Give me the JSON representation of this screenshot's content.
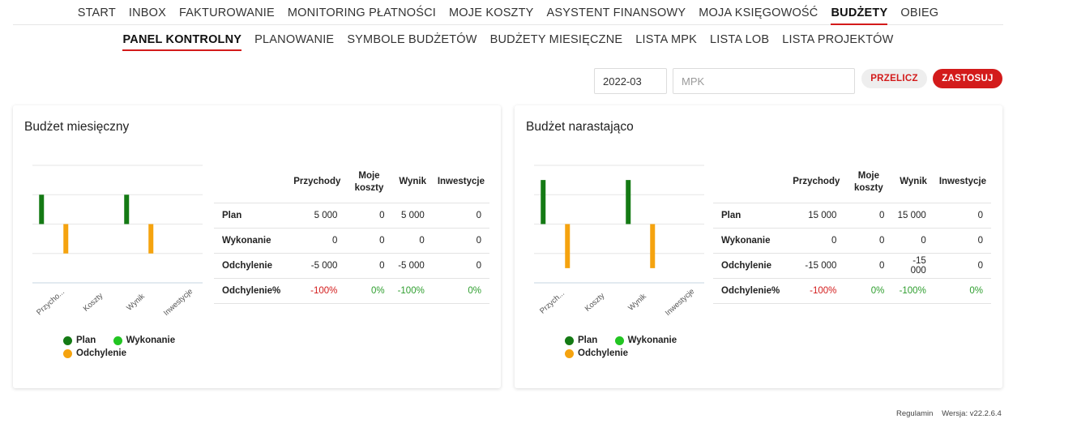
{
  "nav": {
    "items": [
      "START",
      "INBOX",
      "FAKTUROWANIE",
      "MONITORING PŁATNOŚCI",
      "MOJE KOSZTY",
      "ASYSTENT FINANSOWY",
      "MOJA KSIĘGOWOŚĆ",
      "BUDŻETY",
      "OBIEG"
    ],
    "active": "BUDŻETY"
  },
  "subnav": {
    "items": [
      "PANEL KONTROLNY",
      "PLANOWANIE",
      "SYMBOLE BUDŻETÓW",
      "BUDŻETY MIESIĘCZNE",
      "LISTA MPK",
      "LISTA LOB",
      "LISTA PROJEKTÓW"
    ],
    "active": "PANEL KONTROLNY"
  },
  "filters": {
    "month_value": "2022-03",
    "mpk_placeholder": "MPK",
    "recalc_label": "PRZELICZ",
    "apply_label": "ZASTOSUJ"
  },
  "colors": {
    "accent": "#d31b1b",
    "plan": "#147a14",
    "wykonanie": "#22c522",
    "odchylenie": "#f5a30f",
    "positive_pct": "#2e9e2e",
    "negative_pct": "#d31b1b"
  },
  "cards": [
    {
      "title": "Budżet miesięczny",
      "columns": [
        "Przychody",
        "Moje koszty",
        "Wynik",
        "Inwestycje"
      ],
      "rows": [
        {
          "label": "Plan",
          "values": [
            "5 000",
            "0",
            "5 000",
            "0"
          ]
        },
        {
          "label": "Wykonanie",
          "values": [
            "0",
            "0",
            "0",
            "0"
          ]
        },
        {
          "label": "Odchylenie",
          "values": [
            "-5 000",
            "0",
            "-5 000",
            "0"
          ]
        },
        {
          "label": "Odchylenie%",
          "values": [
            "-100%",
            "0%",
            "-100%",
            "0%"
          ]
        }
      ]
    },
    {
      "title": "Budżet narastająco",
      "columns": [
        "Przychody",
        "Moje koszty",
        "Wynik",
        "Inwestycje"
      ],
      "rows": [
        {
          "label": "Plan",
          "values": [
            "15 000",
            "0",
            "15 000",
            "0"
          ]
        },
        {
          "label": "Wykonanie",
          "values": [
            "0",
            "0",
            "0",
            "0"
          ]
        },
        {
          "label": "Odchylenie",
          "values": [
            "-15 000",
            "0",
            "-15 000",
            "0"
          ]
        },
        {
          "label": "Odchylenie%",
          "values": [
            "-100%",
            "0%",
            "-100%",
            "0%"
          ]
        }
      ]
    }
  ],
  "legend": [
    "Plan",
    "Wykonanie",
    "Odchylenie"
  ],
  "chart_data": [
    {
      "type": "bar",
      "categories": [
        "Przycho...",
        "Koszty",
        "Wynik",
        "Inwestycje"
      ],
      "series": [
        {
          "name": "Plan",
          "values": [
            5000,
            0,
            5000,
            0
          ]
        },
        {
          "name": "Wykonanie",
          "values": [
            0,
            0,
            0,
            0
          ]
        },
        {
          "name": "Odchylenie",
          "values": [
            -5000,
            0,
            -5000,
            0
          ]
        }
      ],
      "ylim": [
        -10000,
        10000
      ],
      "grid": true,
      "legend_position": "bottom"
    },
    {
      "type": "bar",
      "categories": [
        "Przych...",
        "Koszty",
        "Wynik",
        "Inwestycje"
      ],
      "series": [
        {
          "name": "Plan",
          "values": [
            15000,
            0,
            15000,
            0
          ]
        },
        {
          "name": "Wykonanie",
          "values": [
            0,
            0,
            0,
            0
          ]
        },
        {
          "name": "Odchylenie",
          "values": [
            -15000,
            0,
            -15000,
            0
          ]
        }
      ],
      "ylim": [
        -20000,
        20000
      ],
      "grid": true,
      "legend_position": "bottom"
    }
  ],
  "footer": {
    "terms": "Regulamin",
    "version": "Wersja: v22.2.6.4"
  }
}
